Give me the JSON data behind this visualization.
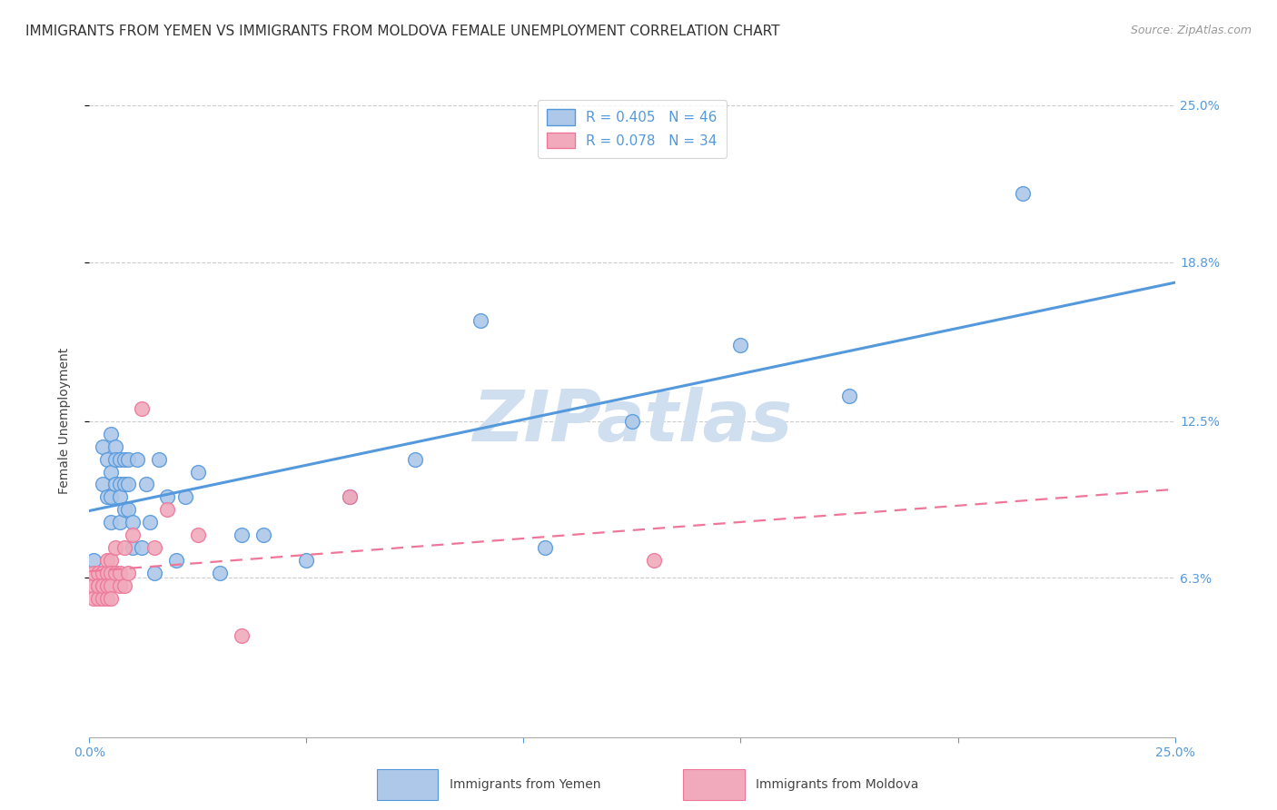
{
  "title": "IMMIGRANTS FROM YEMEN VS IMMIGRANTS FROM MOLDOVA FEMALE UNEMPLOYMENT CORRELATION CHART",
  "source": "Source: ZipAtlas.com",
  "ylabel": "Female Unemployment",
  "xlim": [
    0.0,
    0.25
  ],
  "ylim": [
    0.0,
    0.25
  ],
  "y_tick_labels_right": [
    "25.0%",
    "18.8%",
    "12.5%",
    "6.3%"
  ],
  "y_tick_positions_right": [
    0.25,
    0.188,
    0.125,
    0.063
  ],
  "legend_R1": "R = 0.405",
  "legend_N1": "N = 46",
  "legend_R2": "R = 0.078",
  "legend_N2": "N = 34",
  "color_yemen": "#adc8e8",
  "color_moldova": "#f0aabb",
  "color_line_yemen": "#5599dd",
  "color_line_moldova": "#ee7799",
  "background_color": "#ffffff",
  "watermark": "ZIPatlas",
  "watermark_color": "#d0dff0",
  "yemen_x": [
    0.001,
    0.003,
    0.003,
    0.004,
    0.004,
    0.005,
    0.005,
    0.005,
    0.005,
    0.006,
    0.006,
    0.006,
    0.007,
    0.007,
    0.007,
    0.007,
    0.008,
    0.008,
    0.008,
    0.009,
    0.009,
    0.009,
    0.01,
    0.01,
    0.011,
    0.012,
    0.013,
    0.014,
    0.015,
    0.016,
    0.018,
    0.02,
    0.022,
    0.025,
    0.03,
    0.035,
    0.04,
    0.05,
    0.06,
    0.075,
    0.09,
    0.105,
    0.125,
    0.15,
    0.175,
    0.215
  ],
  "yemen_y": [
    0.07,
    0.115,
    0.1,
    0.11,
    0.095,
    0.12,
    0.105,
    0.095,
    0.085,
    0.115,
    0.11,
    0.1,
    0.11,
    0.1,
    0.095,
    0.085,
    0.11,
    0.1,
    0.09,
    0.11,
    0.1,
    0.09,
    0.085,
    0.075,
    0.11,
    0.075,
    0.1,
    0.085,
    0.065,
    0.11,
    0.095,
    0.07,
    0.095,
    0.105,
    0.065,
    0.08,
    0.08,
    0.07,
    0.095,
    0.11,
    0.165,
    0.075,
    0.125,
    0.155,
    0.135,
    0.215
  ],
  "moldova_x": [
    0.001,
    0.001,
    0.001,
    0.002,
    0.002,
    0.002,
    0.002,
    0.003,
    0.003,
    0.003,
    0.003,
    0.004,
    0.004,
    0.004,
    0.004,
    0.005,
    0.005,
    0.005,
    0.005,
    0.006,
    0.006,
    0.007,
    0.007,
    0.008,
    0.008,
    0.009,
    0.01,
    0.012,
    0.015,
    0.018,
    0.025,
    0.035,
    0.06,
    0.13
  ],
  "moldova_y": [
    0.06,
    0.065,
    0.055,
    0.065,
    0.06,
    0.055,
    0.06,
    0.065,
    0.06,
    0.055,
    0.06,
    0.07,
    0.065,
    0.055,
    0.06,
    0.07,
    0.065,
    0.06,
    0.055,
    0.075,
    0.065,
    0.06,
    0.065,
    0.075,
    0.06,
    0.065,
    0.08,
    0.13,
    0.075,
    0.09,
    0.08,
    0.04,
    0.095,
    0.07
  ],
  "title_fontsize": 11,
  "label_fontsize": 10,
  "tick_fontsize": 10,
  "legend_fontsize": 11
}
